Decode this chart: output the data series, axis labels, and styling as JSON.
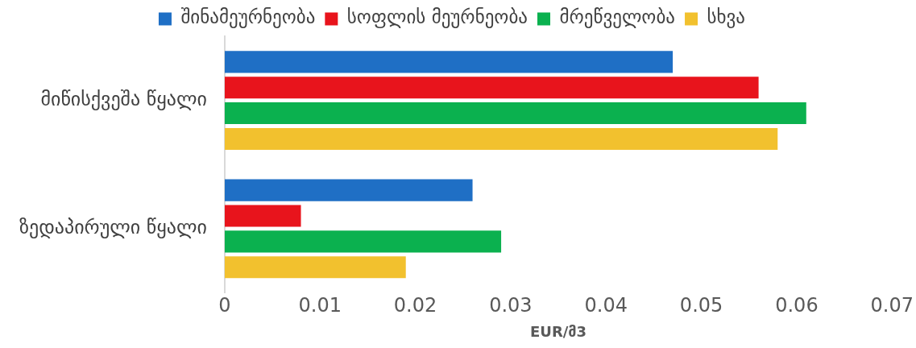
{
  "chart_data": {
    "type": "bar",
    "orientation": "horizontal",
    "xlabel": "EUR/მ3",
    "categories": [
      "მიწისქვეშა წყალი",
      "ზედაპირული წყალი"
    ],
    "series": [
      {
        "name": "შინამეურნეობა",
        "color": "#1f6fc5",
        "values": [
          0.047,
          0.026
        ]
      },
      {
        "name": "სოფლის მეურნეობა",
        "color": "#e8141c",
        "values": [
          0.056,
          0.008
        ]
      },
      {
        "name": "მრეწველობა",
        "color": "#0bb14f",
        "values": [
          0.061,
          0.029
        ]
      },
      {
        "name": "სხვა",
        "color": "#f2c12e",
        "values": [
          0.058,
          0.019
        ]
      }
    ],
    "xlim": [
      0,
      0.07
    ],
    "xticks": [
      0,
      0.01,
      0.02,
      0.03,
      0.04,
      0.05,
      0.06,
      0.07
    ],
    "grid": false,
    "legend": "top"
  }
}
